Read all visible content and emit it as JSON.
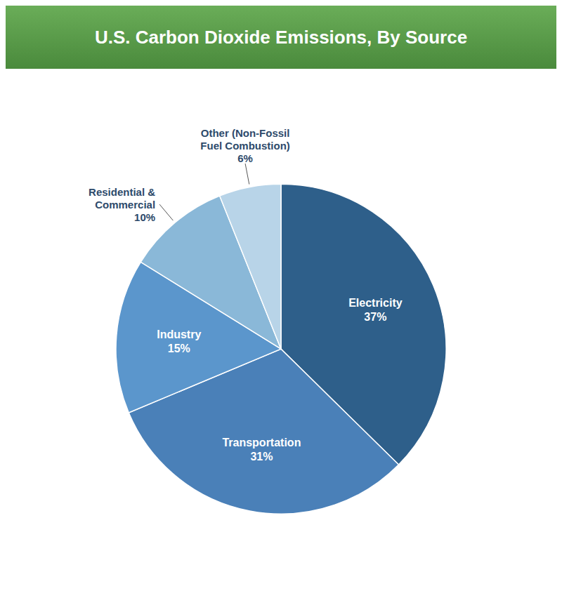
{
  "chart_data": {
    "type": "pie",
    "title": "U.S. Carbon Dioxide Emissions, By Source",
    "categories": [
      "Electricity",
      "Transportation",
      "Industry",
      "Residential &\nCommercial",
      "Other (Non-Fossil\nFuel Combustion)"
    ],
    "values": [
      37,
      31,
      15,
      10,
      6
    ],
    "value_labels": [
      "37%",
      "31%",
      "15%",
      "10%",
      "6%"
    ],
    "colors": [
      "#2e5f8a",
      "#4a80b8",
      "#5b96cc",
      "#8ab8d8",
      "#b8d4e8"
    ],
    "data_labels": true
  }
}
